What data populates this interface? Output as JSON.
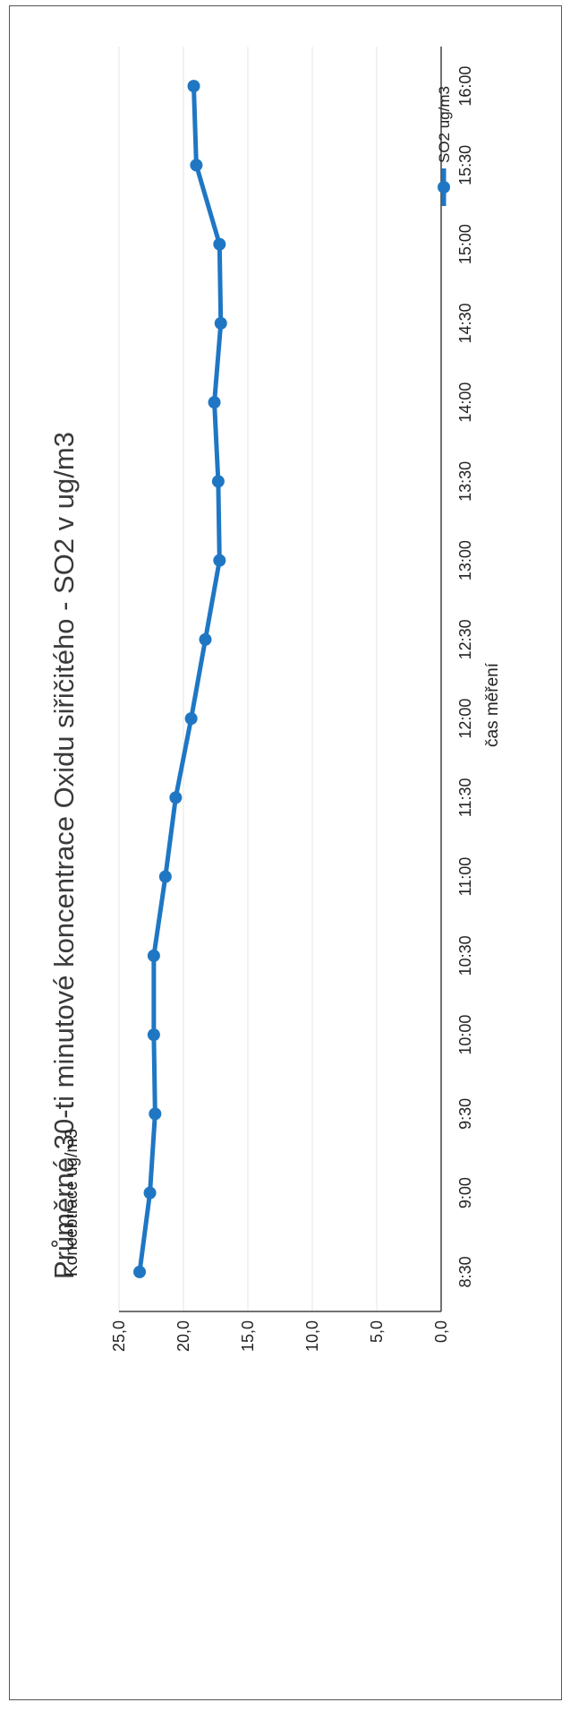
{
  "chart_data": {
    "type": "line",
    "title": "Průměrné 30-ti minutové koncentrace Oxidu siřičitého - SO2 v ug/m3",
    "xlabel": "čas měření",
    "ylabel": "Koncebtrace ug/m3",
    "ylim": [
      0,
      25
    ],
    "yticks": [
      "0,0",
      "5,0",
      "10,0",
      "15,0",
      "20,0",
      "25,0"
    ],
    "yticks_values": [
      0,
      5,
      10,
      15,
      20,
      25
    ],
    "legend_position": "top-right",
    "grid": true,
    "categories": [
      "8:30",
      "9:00",
      "9:30",
      "10:00",
      "10:30",
      "11:00",
      "11:30",
      "12:00",
      "12:30",
      "13:00",
      "13:30",
      "14:00",
      "14:30",
      "15:00",
      "15:30",
      "16:00"
    ],
    "series": [
      {
        "name": "SO2 ug/m3",
        "color": "#1f77c4",
        "values": [
          23.4,
          22.6,
          22.2,
          22.3,
          22.3,
          21.4,
          20.6,
          19.4,
          18.3,
          17.2,
          17.3,
          17.6,
          17.1,
          17.2,
          19.0,
          19.2
        ]
      }
    ]
  }
}
